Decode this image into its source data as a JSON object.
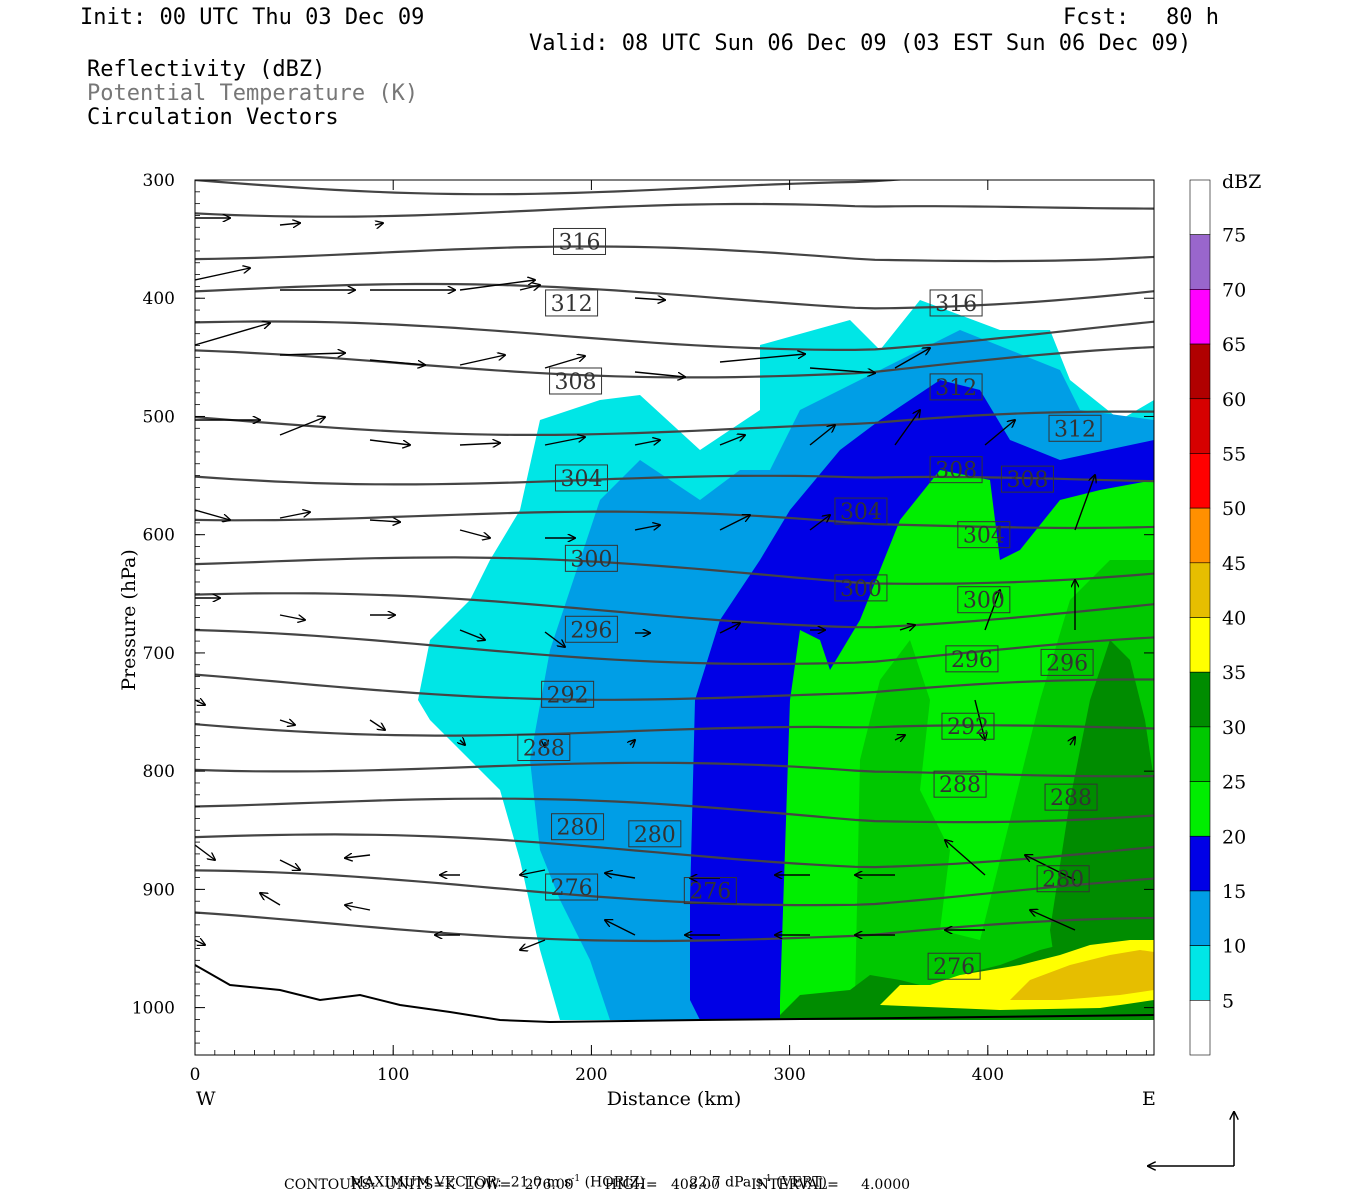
{
  "header": {
    "init": "Init: 00 UTC Thu 03 Dec 09",
    "fcst_label": "Fcst:",
    "fcst_value": "80 h",
    "valid": "Valid: 08 UTC Sun 06 Dec 09 (03 EST Sun 06 Dec 09)"
  },
  "legend_lines": [
    "Reflectivity (dBZ)",
    "Potential Temperature (K)",
    "Circulation Vectors"
  ],
  "colorbar": {
    "unit": "dBZ",
    "levels": [
      "5",
      "10",
      "15",
      "20",
      "25",
      "30",
      "35",
      "40",
      "45",
      "50",
      "55",
      "60",
      "65",
      "70",
      "75"
    ],
    "colors": [
      "#ffffff",
      "#00e6e6",
      "#009ee6",
      "#0000e6",
      "#00ee00",
      "#00c800",
      "#008c00",
      "#ffff00",
      "#e6be00",
      "#ff9000",
      "#ff0000",
      "#d60000",
      "#b00000",
      "#ff00ff",
      "#9966cc",
      "#ffffff"
    ]
  },
  "chart_data": {
    "type": "contour",
    "xlabel": "Distance (km)",
    "ylabel": "Pressure (hPa)",
    "xlim": [
      0,
      485
    ],
    "ylim": [
      1040,
      300
    ],
    "x_ticks": [
      "0",
      "100",
      "200",
      "300",
      "400"
    ],
    "y_ticks": [
      "300",
      "400",
      "500",
      "600",
      "700",
      "800",
      "900",
      "1000"
    ],
    "x_end_labels": {
      "left": "W",
      "right": "E"
    },
    "reflectivity_region_note": "Reflectivity shading from x~115 km to 485 km; max ~40 dBZ near surface at x~430-485 km",
    "theta_labels": [
      {
        "x": 194,
        "p": 352,
        "v": "316"
      },
      {
        "x": 190,
        "p": 404,
        "v": "312"
      },
      {
        "x": 192,
        "p": 470,
        "v": "308"
      },
      {
        "x": 195,
        "p": 552,
        "v": "304"
      },
      {
        "x": 200,
        "p": 620,
        "v": "300"
      },
      {
        "x": 200,
        "p": 680,
        "v": "296"
      },
      {
        "x": 188,
        "p": 735,
        "v": "292"
      },
      {
        "x": 176,
        "p": 780,
        "v": "288"
      },
      {
        "x": 193,
        "p": 847,
        "v": "280"
      },
      {
        "x": 232,
        "p": 853,
        "v": "280"
      },
      {
        "x": 190,
        "p": 898,
        "v": "276"
      },
      {
        "x": 260,
        "p": 901,
        "v": "276"
      },
      {
        "x": 384,
        "p": 404,
        "v": "316"
      },
      {
        "x": 384,
        "p": 475,
        "v": "312"
      },
      {
        "x": 444,
        "p": 510,
        "v": "312"
      },
      {
        "x": 384,
        "p": 545,
        "v": "308"
      },
      {
        "x": 420,
        "p": 553,
        "v": "308"
      },
      {
        "x": 336,
        "p": 580,
        "v": "304"
      },
      {
        "x": 398,
        "p": 600,
        "v": "304"
      },
      {
        "x": 336,
        "p": 645,
        "v": "300"
      },
      {
        "x": 398,
        "p": 655,
        "v": "300"
      },
      {
        "x": 392,
        "p": 705,
        "v": "296"
      },
      {
        "x": 440,
        "p": 708,
        "v": "296"
      },
      {
        "x": 390,
        "p": 762,
        "v": "292"
      },
      {
        "x": 386,
        "p": 811,
        "v": "288"
      },
      {
        "x": 442,
        "p": 822,
        "v": "288"
      },
      {
        "x": 438,
        "p": 891,
        "v": "280"
      },
      {
        "x": 383,
        "p": 965,
        "v": "276"
      }
    ],
    "max_vector_horiz": "21.0",
    "max_vector_vert": "22.7",
    "contour_low": "276.00",
    "contour_high": "408.00",
    "contour_interval": "4.0000"
  },
  "footer": {
    "max_vector_label": "MAXIMUM VECTOR:",
    "horiz_value": "21.0 m s",
    "horiz_suffix": "(HORIZ)",
    "vert_value": "22.7 dPa s",
    "vert_suffix": "(VERT)",
    "sup": "-1",
    "contours_line": "CONTOURS:  UNITS=K  LOW=   276.00       HIGH=   408.00       INTERVAL=     4.0000"
  }
}
